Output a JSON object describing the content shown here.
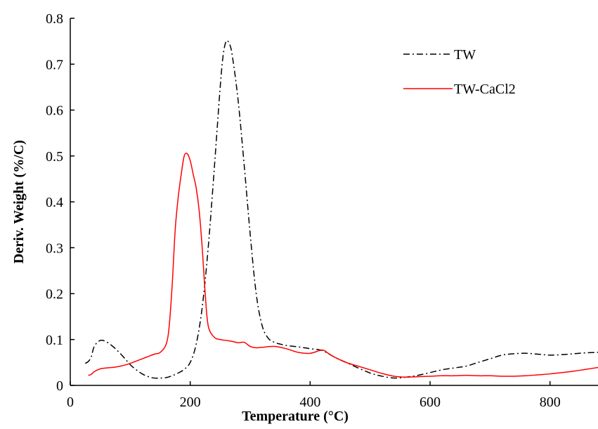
{
  "chart_data": {
    "type": "line",
    "title": "",
    "xlabel": "Temperature (°C)",
    "ylabel": "Deriv. Weight (%/C)",
    "xlim": [
      0,
      880
    ],
    "ylim": [
      0,
      0.8
    ],
    "xticks": [
      0,
      200,
      400,
      600,
      800
    ],
    "xtick_labels": [
      "0",
      "200",
      "400",
      "600",
      "800"
    ],
    "yticks": [
      0,
      0.1,
      0.2,
      0.3,
      0.4,
      0.5,
      0.6,
      0.7,
      0.8
    ],
    "ytick_labels": [
      "0",
      "0.1",
      "0.2",
      "0.3",
      "0.4",
      "0.5",
      "0.6",
      "0.7",
      "0.8"
    ],
    "grid": false,
    "legend": "top-right",
    "series": [
      {
        "name": "TW",
        "color": "#000000",
        "dash": "dash-dot",
        "x": [
          25,
          30,
          35,
          40,
          50,
          60,
          70,
          80,
          90,
          100,
          110,
          120,
          130,
          140,
          150,
          160,
          170,
          180,
          190,
          200,
          210,
          220,
          230,
          240,
          250,
          255,
          260,
          265,
          270,
          280,
          290,
          300,
          310,
          320,
          330,
          340,
          350,
          360,
          380,
          400,
          420,
          440,
          460,
          480,
          500,
          520,
          540,
          560,
          580,
          600,
          620,
          640,
          660,
          680,
          700,
          720,
          740,
          760,
          780,
          800,
          820,
          840,
          860,
          880
        ],
        "y": [
          0.048,
          0.052,
          0.062,
          0.085,
          0.098,
          0.095,
          0.086,
          0.074,
          0.06,
          0.045,
          0.034,
          0.025,
          0.019,
          0.016,
          0.016,
          0.017,
          0.021,
          0.027,
          0.035,
          0.05,
          0.09,
          0.17,
          0.3,
          0.47,
          0.65,
          0.72,
          0.75,
          0.745,
          0.72,
          0.62,
          0.48,
          0.33,
          0.2,
          0.13,
          0.103,
          0.094,
          0.09,
          0.087,
          0.084,
          0.08,
          0.076,
          0.062,
          0.05,
          0.038,
          0.027,
          0.02,
          0.016,
          0.018,
          0.022,
          0.028,
          0.034,
          0.038,
          0.042,
          0.05,
          0.058,
          0.066,
          0.069,
          0.07,
          0.068,
          0.066,
          0.067,
          0.069,
          0.071,
          0.072
        ]
      },
      {
        "name": "TW-CaCl2",
        "color": "#ff0000",
        "dash": "solid",
        "x": [
          30,
          35,
          40,
          50,
          60,
          70,
          80,
          90,
          100,
          110,
          120,
          130,
          140,
          150,
          160,
          165,
          170,
          175,
          180,
          185,
          190,
          195,
          200,
          205,
          210,
          215,
          220,
          225,
          230,
          240,
          250,
          260,
          270,
          280,
          290,
          300,
          310,
          320,
          340,
          360,
          380,
          400,
          420,
          430,
          440,
          460,
          480,
          500,
          520,
          540,
          560,
          580,
          600,
          620,
          640,
          660,
          680,
          700,
          720,
          740,
          760,
          780,
          800,
          820,
          840,
          860,
          880
        ],
        "y": [
          0.022,
          0.024,
          0.03,
          0.036,
          0.038,
          0.039,
          0.041,
          0.044,
          0.048,
          0.053,
          0.058,
          0.063,
          0.068,
          0.072,
          0.09,
          0.13,
          0.22,
          0.34,
          0.41,
          0.46,
          0.5,
          0.505,
          0.49,
          0.46,
          0.43,
          0.38,
          0.3,
          0.2,
          0.13,
          0.105,
          0.1,
          0.098,
          0.096,
          0.093,
          0.094,
          0.085,
          0.082,
          0.083,
          0.085,
          0.08,
          0.072,
          0.07,
          0.077,
          0.07,
          0.062,
          0.05,
          0.042,
          0.034,
          0.026,
          0.02,
          0.018,
          0.019,
          0.02,
          0.021,
          0.021,
          0.022,
          0.021,
          0.021,
          0.02,
          0.02,
          0.021,
          0.023,
          0.025,
          0.028,
          0.031,
          0.035,
          0.039
        ]
      }
    ]
  }
}
